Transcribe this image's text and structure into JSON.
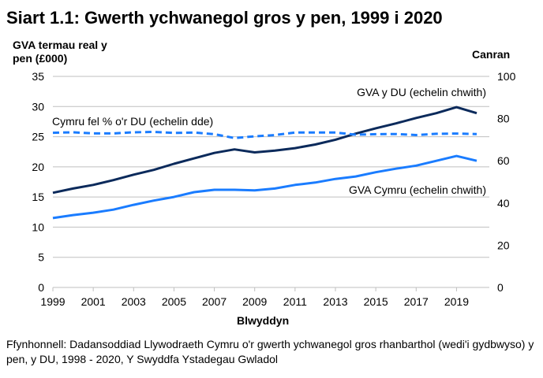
{
  "chart_data": {
    "type": "line",
    "title": "Siart 1.1: Gwerth ychwanegol gros y pen, 1999 i 2020",
    "ylabel": "GVA termau real y pen (£000)",
    "y2label": "Canran",
    "xlabel": "Blwyddyn",
    "x": [
      1999,
      2000,
      2001,
      2002,
      2003,
      2004,
      2005,
      2006,
      2007,
      2008,
      2009,
      2010,
      2011,
      2012,
      2013,
      2014,
      2015,
      2016,
      2017,
      2018,
      2019,
      2020
    ],
    "xticks": [
      "1999",
      "2001",
      "2003",
      "2005",
      "2007",
      "2009",
      "2011",
      "2013",
      "2015",
      "2017",
      "2019"
    ],
    "ylim": [
      0,
      35
    ],
    "yticks": [
      "0",
      "5",
      "10",
      "15",
      "20",
      "25",
      "30",
      "35"
    ],
    "y2lim": [
      0,
      100
    ],
    "y2ticks": [
      "0",
      "20",
      "40",
      "60",
      "80",
      "100"
    ],
    "grid": true,
    "series": [
      {
        "name": "GVA y DU (echelin chwith)",
        "axis": "left",
        "color": "#0b2a5b",
        "dash": false,
        "values": [
          15.7,
          16.4,
          17.0,
          17.8,
          18.7,
          19.5,
          20.5,
          21.4,
          22.3,
          22.9,
          22.4,
          22.7,
          23.1,
          23.7,
          24.5,
          25.5,
          26.4,
          27.2,
          28.1,
          28.9,
          29.9,
          28.9
        ]
      },
      {
        "name": "GVA Cymru (echelin chwith)",
        "axis": "right-label",
        "color": "#1a7cff",
        "dash": false,
        "axisSide": "left",
        "values": [
          11.5,
          12.0,
          12.4,
          12.9,
          13.7,
          14.4,
          15.0,
          15.8,
          16.2,
          16.2,
          16.1,
          16.4,
          17.0,
          17.4,
          18.0,
          18.4,
          19.1,
          19.7,
          20.2,
          21.0,
          21.8,
          21.0
        ]
      },
      {
        "name": "Cymru fel % o'r DU (echelin dde)",
        "axis": "right",
        "color": "#1a7cff",
        "dash": true,
        "values": [
          73.3,
          73.5,
          73.0,
          73.0,
          73.5,
          73.7,
          73.2,
          73.4,
          72.6,
          70.8,
          71.6,
          72.2,
          73.4,
          73.4,
          73.4,
          72.4,
          72.6,
          72.7,
          72.2,
          72.8,
          72.9,
          72.7
        ]
      }
    ]
  },
  "source": "Ffynhonnell: Dadansoddiad Llywodraeth Cymru o'r gwerth ychwanegol gros rhanbarthol (wedi'i gydbwyso) y pen, y DU, 1998 - 2020, Y Swyddfa Ystadegau Gwladol"
}
